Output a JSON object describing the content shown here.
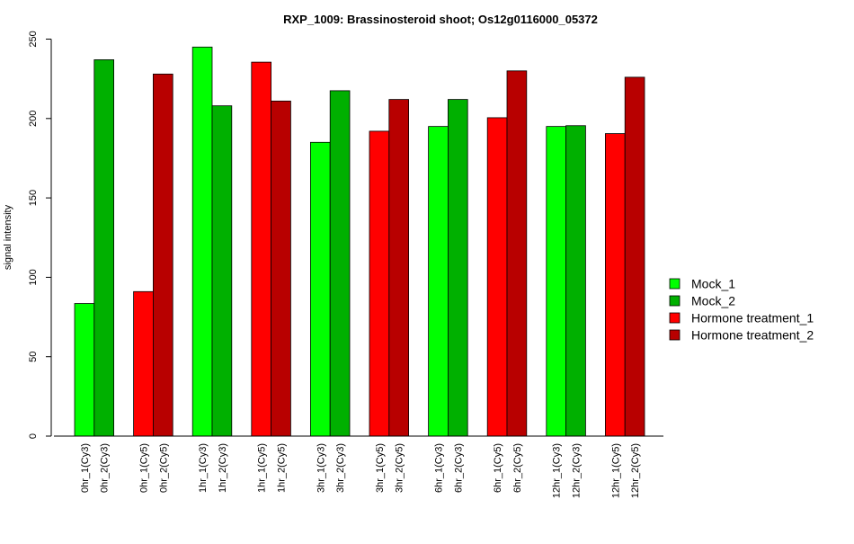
{
  "chart_data": {
    "type": "bar",
    "title": "RXP_1009: Brassinosteroid shoot; Os12g0116000_05372",
    "xlabel": "",
    "ylabel": "signal intensity",
    "ylim": [
      0,
      250
    ],
    "yticks": [
      0,
      50,
      100,
      150,
      200,
      250
    ],
    "grid": false,
    "legend_position": "right",
    "categories": [
      "0hr_1(Cy3)",
      "0hr_2(Cy3)",
      "0hr_1(Cy5)",
      "0hr_2(Cy5)",
      "1hr_1(Cy3)",
      "1hr_2(Cy3)",
      "1hr_1(Cy5)",
      "1hr_2(Cy5)",
      "3hr_1(Cy3)",
      "3hr_2(Cy3)",
      "3hr_1(Cy5)",
      "3hr_2(Cy5)",
      "6hr_1(Cy3)",
      "6hr_2(Cy3)",
      "6hr_1(Cy5)",
      "6hr_2(Cy5)",
      "12hr_1(Cy3)",
      "12hr_2(Cy3)",
      "12hr_1(Cy5)",
      "12hr_2(Cy5)"
    ],
    "values": [
      83.5,
      237,
      91,
      228,
      245,
      208,
      235.5,
      211,
      185,
      217.5,
      192,
      212,
      195,
      212,
      200.5,
      230,
      195,
      195.5,
      190.5,
      226
    ],
    "bar_series": [
      0,
      1,
      2,
      3,
      0,
      1,
      2,
      3,
      0,
      1,
      2,
      3,
      0,
      1,
      2,
      3,
      0,
      1,
      2,
      3
    ],
    "series": [
      {
        "name": "Mock_1",
        "color": "#00ff00"
      },
      {
        "name": "Mock_2",
        "color": "#00b000"
      },
      {
        "name": "Hormone treatment_1",
        "color": "#ff0000"
      },
      {
        "name": "Hormone treatment_2",
        "color": "#b80000"
      }
    ]
  }
}
